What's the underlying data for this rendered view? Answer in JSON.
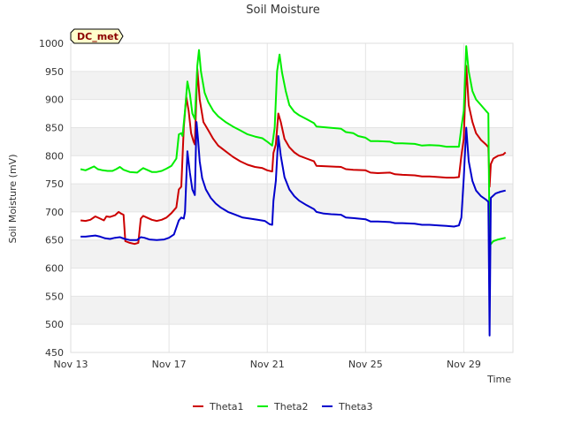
{
  "chart_data": {
    "type": "line",
    "title": "Soil Moisture",
    "xlabel": "Time",
    "ylabel": "Soil Moisture (mV)",
    "station_label": "DC_met",
    "xlim": [
      0,
      18
    ],
    "ylim": [
      450,
      1000
    ],
    "x_ticks": [
      {
        "value": 0,
        "label": "Nov 13"
      },
      {
        "value": 4,
        "label": "Nov 17"
      },
      {
        "value": 8,
        "label": "Nov 21"
      },
      {
        "value": 12,
        "label": "Nov 25"
      },
      {
        "value": 16,
        "label": "Nov 29"
      }
    ],
    "y_ticks": [
      450,
      500,
      550,
      600,
      650,
      700,
      750,
      800,
      850,
      900,
      950,
      1000
    ],
    "grid": true,
    "legend_position": "bottom-center",
    "series": [
      {
        "name": "Theta1",
        "color": "#cc0000",
        "points": [
          [
            0.4,
            685
          ],
          [
            0.6,
            684
          ],
          [
            0.8,
            686
          ],
          [
            1.0,
            692
          ],
          [
            1.2,
            688
          ],
          [
            1.35,
            685
          ],
          [
            1.45,
            692
          ],
          [
            1.6,
            691
          ],
          [
            1.8,
            694
          ],
          [
            1.95,
            700
          ],
          [
            2.05,
            697
          ],
          [
            2.15,
            695
          ],
          [
            2.22,
            648
          ],
          [
            2.4,
            645
          ],
          [
            2.6,
            643
          ],
          [
            2.75,
            645
          ],
          [
            2.85,
            688
          ],
          [
            2.95,
            693
          ],
          [
            3.1,
            690
          ],
          [
            3.3,
            686
          ],
          [
            3.5,
            684
          ],
          [
            3.7,
            686
          ],
          [
            3.9,
            690
          ],
          [
            4.1,
            698
          ],
          [
            4.3,
            708
          ],
          [
            4.4,
            740
          ],
          [
            4.5,
            745
          ],
          [
            4.6,
            850
          ],
          [
            4.7,
            905
          ],
          [
            4.8,
            880
          ],
          [
            4.9,
            840
          ],
          [
            5.0,
            825
          ],
          [
            5.05,
            820
          ],
          [
            5.15,
            955
          ],
          [
            5.25,
            900
          ],
          [
            5.4,
            860
          ],
          [
            5.6,
            845
          ],
          [
            5.8,
            830
          ],
          [
            6.0,
            818
          ],
          [
            6.3,
            808
          ],
          [
            6.6,
            798
          ],
          [
            6.9,
            790
          ],
          [
            7.2,
            784
          ],
          [
            7.5,
            780
          ],
          [
            7.8,
            778
          ],
          [
            8.0,
            774
          ],
          [
            8.2,
            772
          ],
          [
            8.25,
            805
          ],
          [
            8.35,
            820
          ],
          [
            8.45,
            875
          ],
          [
            8.55,
            860
          ],
          [
            8.7,
            830
          ],
          [
            8.9,
            815
          ],
          [
            9.1,
            806
          ],
          [
            9.3,
            800
          ],
          [
            9.6,
            795
          ],
          [
            9.9,
            790
          ],
          [
            10.0,
            782
          ],
          [
            10.5,
            781
          ],
          [
            11.0,
            780
          ],
          [
            11.2,
            776
          ],
          [
            11.5,
            775
          ],
          [
            12.0,
            774
          ],
          [
            12.2,
            770
          ],
          [
            12.5,
            769
          ],
          [
            13.0,
            770
          ],
          [
            13.2,
            767
          ],
          [
            13.5,
            766
          ],
          [
            14.0,
            765
          ],
          [
            14.3,
            763
          ],
          [
            14.6,
            763
          ],
          [
            15.0,
            762
          ],
          [
            15.3,
            761
          ],
          [
            15.6,
            761
          ],
          [
            15.8,
            762
          ],
          [
            15.9,
            800
          ],
          [
            16.0,
            830
          ],
          [
            16.1,
            960
          ],
          [
            16.2,
            890
          ],
          [
            16.35,
            860
          ],
          [
            16.5,
            840
          ],
          [
            16.7,
            828
          ],
          [
            16.9,
            820
          ],
          [
            17.0,
            815
          ],
          [
            17.05,
            745
          ],
          [
            17.1,
            785
          ],
          [
            17.2,
            795
          ],
          [
            17.4,
            800
          ],
          [
            17.6,
            802
          ],
          [
            17.7,
            806
          ]
        ]
      },
      {
        "name": "Theta2",
        "color": "#00ee00",
        "points": [
          [
            0.4,
            776
          ],
          [
            0.6,
            774
          ],
          [
            0.8,
            778
          ],
          [
            0.95,
            781
          ],
          [
            1.1,
            776
          ],
          [
            1.3,
            774
          ],
          [
            1.5,
            773
          ],
          [
            1.7,
            773
          ],
          [
            1.85,
            776
          ],
          [
            2.0,
            780
          ],
          [
            2.15,
            775
          ],
          [
            2.4,
            771
          ],
          [
            2.7,
            770
          ],
          [
            2.85,
            775
          ],
          [
            2.95,
            778
          ],
          [
            3.1,
            775
          ],
          [
            3.3,
            771
          ],
          [
            3.5,
            771
          ],
          [
            3.7,
            773
          ],
          [
            3.9,
            777
          ],
          [
            4.1,
            782
          ],
          [
            4.3,
            795
          ],
          [
            4.4,
            838
          ],
          [
            4.5,
            840
          ],
          [
            4.55,
            835
          ],
          [
            4.65,
            880
          ],
          [
            4.75,
            932
          ],
          [
            4.85,
            910
          ],
          [
            4.95,
            875
          ],
          [
            5.05,
            865
          ],
          [
            5.15,
            960
          ],
          [
            5.22,
            988
          ],
          [
            5.3,
            950
          ],
          [
            5.45,
            912
          ],
          [
            5.6,
            895
          ],
          [
            5.8,
            880
          ],
          [
            6.0,
            870
          ],
          [
            6.3,
            860
          ],
          [
            6.6,
            852
          ],
          [
            6.9,
            845
          ],
          [
            7.2,
            838
          ],
          [
            7.5,
            834
          ],
          [
            7.8,
            831
          ],
          [
            8.0,
            825
          ],
          [
            8.2,
            818
          ],
          [
            8.3,
            850
          ],
          [
            8.4,
            950
          ],
          [
            8.5,
            980
          ],
          [
            8.6,
            948
          ],
          [
            8.75,
            915
          ],
          [
            8.9,
            890
          ],
          [
            9.1,
            878
          ],
          [
            9.3,
            872
          ],
          [
            9.6,
            865
          ],
          [
            9.9,
            858
          ],
          [
            10.0,
            852
          ],
          [
            10.5,
            850
          ],
          [
            11.0,
            848
          ],
          [
            11.2,
            842
          ],
          [
            11.5,
            840
          ],
          [
            11.7,
            835
          ],
          [
            12.0,
            832
          ],
          [
            12.2,
            826
          ],
          [
            12.5,
            826
          ],
          [
            13.0,
            825
          ],
          [
            13.2,
            822
          ],
          [
            13.5,
            822
          ],
          [
            14.0,
            821
          ],
          [
            14.3,
            818
          ],
          [
            14.6,
            819
          ],
          [
            15.0,
            818
          ],
          [
            15.3,
            816
          ],
          [
            15.8,
            816
          ],
          [
            15.9,
            850
          ],
          [
            16.0,
            880
          ],
          [
            16.1,
            995
          ],
          [
            16.2,
            950
          ],
          [
            16.35,
            915
          ],
          [
            16.5,
            900
          ],
          [
            16.7,
            890
          ],
          [
            16.9,
            880
          ],
          [
            17.0,
            875
          ],
          [
            17.05,
            640
          ],
          [
            17.2,
            648
          ],
          [
            17.4,
            651
          ],
          [
            17.6,
            653
          ],
          [
            17.7,
            654
          ]
        ]
      },
      {
        "name": "Theta3",
        "color": "#0000cc",
        "points": [
          [
            0.4,
            656
          ],
          [
            0.6,
            656
          ],
          [
            0.8,
            657
          ],
          [
            1.0,
            658
          ],
          [
            1.2,
            656
          ],
          [
            1.4,
            653
          ],
          [
            1.6,
            652
          ],
          [
            1.8,
            654
          ],
          [
            2.0,
            655
          ],
          [
            2.2,
            652
          ],
          [
            2.4,
            650
          ],
          [
            2.7,
            650
          ],
          [
            2.85,
            655
          ],
          [
            3.0,
            654
          ],
          [
            3.2,
            651
          ],
          [
            3.5,
            650
          ],
          [
            3.8,
            651
          ],
          [
            4.0,
            654
          ],
          [
            4.2,
            660
          ],
          [
            4.3,
            672
          ],
          [
            4.4,
            685
          ],
          [
            4.5,
            690
          ],
          [
            4.6,
            688
          ],
          [
            4.65,
            700
          ],
          [
            4.75,
            808
          ],
          [
            4.85,
            770
          ],
          [
            4.95,
            740
          ],
          [
            5.05,
            730
          ],
          [
            5.12,
            860
          ],
          [
            5.18,
            830
          ],
          [
            5.25,
            790
          ],
          [
            5.35,
            760
          ],
          [
            5.5,
            740
          ],
          [
            5.7,
            725
          ],
          [
            5.9,
            715
          ],
          [
            6.1,
            708
          ],
          [
            6.4,
            700
          ],
          [
            6.7,
            695
          ],
          [
            7.0,
            690
          ],
          [
            7.3,
            688
          ],
          [
            7.6,
            686
          ],
          [
            7.9,
            684
          ],
          [
            8.1,
            678
          ],
          [
            8.2,
            677
          ],
          [
            8.25,
            720
          ],
          [
            8.35,
            755
          ],
          [
            8.45,
            835
          ],
          [
            8.55,
            800
          ],
          [
            8.7,
            762
          ],
          [
            8.9,
            740
          ],
          [
            9.1,
            728
          ],
          [
            9.3,
            720
          ],
          [
            9.6,
            712
          ],
          [
            9.9,
            705
          ],
          [
            10.0,
            700
          ],
          [
            10.3,
            697
          ],
          [
            10.6,
            696
          ],
          [
            11.0,
            695
          ],
          [
            11.2,
            690
          ],
          [
            11.5,
            689
          ],
          [
            12.0,
            687
          ],
          [
            12.2,
            683
          ],
          [
            12.5,
            683
          ],
          [
            13.0,
            682
          ],
          [
            13.2,
            680
          ],
          [
            13.5,
            680
          ],
          [
            14.0,
            679
          ],
          [
            14.3,
            677
          ],
          [
            14.6,
            677
          ],
          [
            15.0,
            676
          ],
          [
            15.3,
            675
          ],
          [
            15.6,
            674
          ],
          [
            15.8,
            676
          ],
          [
            15.9,
            690
          ],
          [
            16.0,
            760
          ],
          [
            16.1,
            850
          ],
          [
            16.2,
            790
          ],
          [
            16.35,
            755
          ],
          [
            16.5,
            738
          ],
          [
            16.7,
            728
          ],
          [
            16.9,
            722
          ],
          [
            17.0,
            718
          ],
          [
            17.05,
            480
          ],
          [
            17.1,
            725
          ],
          [
            17.3,
            733
          ],
          [
            17.5,
            736
          ],
          [
            17.7,
            738
          ]
        ]
      }
    ]
  }
}
